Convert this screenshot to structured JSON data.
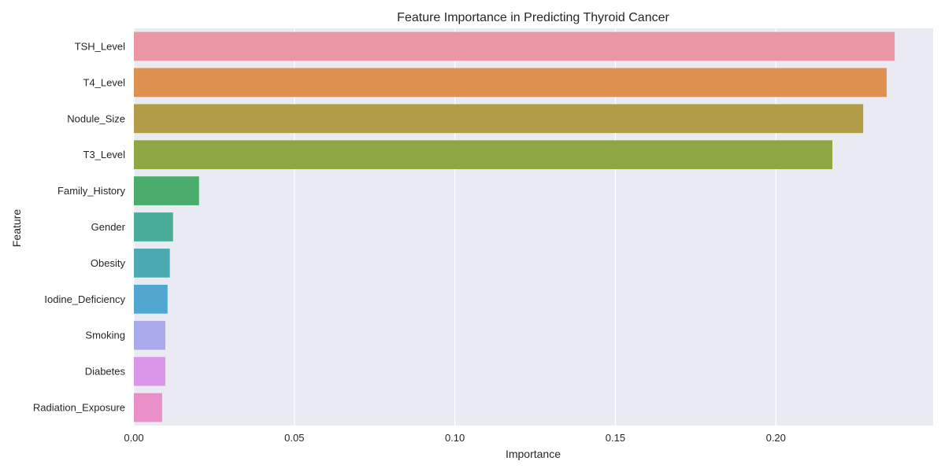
{
  "chart_data": {
    "type": "bar",
    "orientation": "horizontal",
    "title": "Feature Importance in Predicting Thyroid Cancer",
    "xlabel": "Importance",
    "ylabel": "Feature",
    "categories": [
      "TSH_Level",
      "T4_Level",
      "Nodule_Size",
      "T3_Level",
      "Family_History",
      "Gender",
      "Obesity",
      "Iodine_Deficiency",
      "Smoking",
      "Diabetes",
      "Radiation_Exposure"
    ],
    "values": [
      0.237,
      0.2345,
      0.2272,
      0.2176,
      0.0203,
      0.0122,
      0.0112,
      0.0105,
      0.0098,
      0.0098,
      0.0088
    ],
    "colors": [
      "#ea96a3",
      "#dd904f",
      "#b39c48",
      "#8fa645",
      "#4aad6e",
      "#48ac99",
      "#4aaab0",
      "#50a8d0",
      "#a8aaeb",
      "#da97e9",
      "#e890c7"
    ],
    "xlim": [
      0,
      0.249
    ],
    "xticks": [
      "0.00",
      "0.05",
      "0.10",
      "0.15",
      "0.20"
    ],
    "grid": true,
    "background": "#eaeaf2",
    "grid_color": "#ffffff"
  }
}
